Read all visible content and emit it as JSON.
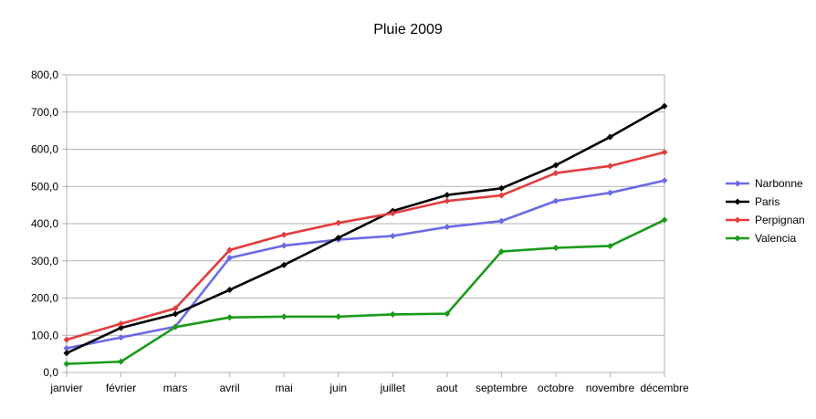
{
  "chart_data": {
    "type": "line",
    "title": "Pluie 2009",
    "xlabel": "",
    "ylabel": "",
    "categories": [
      "janvier",
      "février",
      "mars",
      "avril",
      "mai",
      "juin",
      "juillet",
      "aout",
      "septembre",
      "octobre",
      "novembre",
      "décembre"
    ],
    "ylim": [
      0,
      800
    ],
    "yticks": [
      "0,0",
      "100,0",
      "200,0",
      "300,0",
      "400,0",
      "500,0",
      "600,0",
      "700,0",
      "800,0"
    ],
    "grid": true,
    "legend_position": "right",
    "series": [
      {
        "name": "Narbonne",
        "color": "#6b6be8",
        "values": [
          65,
          94,
          123,
          308,
          341,
          357,
          367,
          391,
          407,
          461,
          483,
          516
        ]
      },
      {
        "name": "Paris",
        "color": "#000000",
        "values": [
          52,
          120,
          157,
          222,
          289,
          362,
          434,
          477,
          495,
          557,
          633,
          716
        ]
      },
      {
        "name": "Perpignan",
        "color": "#e23d3d",
        "values": [
          88,
          131,
          172,
          329,
          370,
          402,
          428,
          461,
          476,
          536,
          555,
          592
        ]
      },
      {
        "name": "Valencia",
        "color": "#1a9a1a",
        "values": [
          23,
          29,
          122,
          148,
          150,
          150,
          156,
          158,
          325,
          335,
          340,
          410
        ]
      }
    ]
  }
}
